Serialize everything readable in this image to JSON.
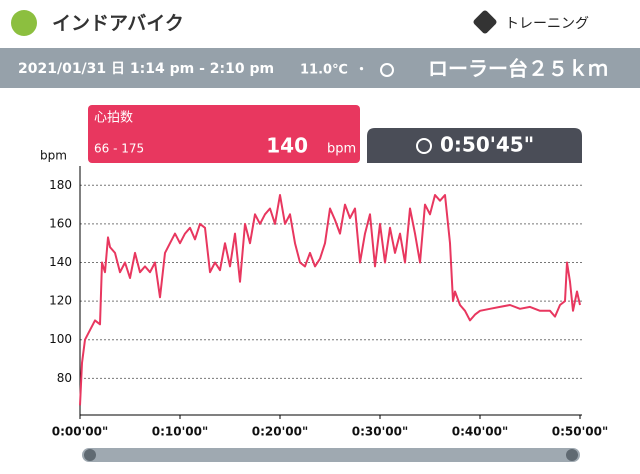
{
  "header": {
    "title": "インドアバイク",
    "tag": "トレーニング"
  },
  "info": {
    "date": "2021/01/31 日 1:14 pm - 2:10 pm",
    "temperature": "11.0℃",
    "separator": "・",
    "route": "ローラー台２５ｋｍ"
  },
  "card": {
    "label": "心拍数",
    "range": "66 - 175",
    "value": 140,
    "unit": "bpm"
  },
  "timer": "0:50'45\"",
  "chart_data": {
    "type": "line",
    "y_label": "bpm",
    "color": "#e8375f",
    "x": [
      0,
      0.2,
      0.5,
      1,
      1.5,
      2,
      2.2,
      2.5,
      2.8,
      3,
      3.5,
      4,
      4.5,
      5,
      5.5,
      6,
      6.5,
      7,
      7.5,
      8,
      8.5,
      9,
      9.5,
      10,
      10.5,
      11,
      11.5,
      12,
      12.5,
      13,
      13.5,
      14,
      14.5,
      15,
      15.5,
      16,
      16.5,
      17,
      17.5,
      18,
      18.5,
      19,
      19.5,
      20,
      20.5,
      21,
      21.5,
      22,
      22.5,
      23,
      23.5,
      24,
      24.5,
      25,
      25.5,
      26,
      26.5,
      27,
      27.5,
      28,
      28.5,
      29,
      29.5,
      30,
      30.5,
      31,
      31.5,
      32,
      32.5,
      33,
      33.5,
      34,
      34.5,
      35,
      35.5,
      36,
      36.5,
      37,
      37.3,
      37.5,
      38,
      38.5,
      39,
      39.5,
      40,
      41,
      42,
      43,
      44,
      45,
      46,
      47,
      47.5,
      48,
      48.5,
      48.7,
      49,
      49.3,
      49.5,
      49.7,
      50
    ],
    "values": [
      66,
      88,
      100,
      105,
      110,
      108,
      140,
      135,
      153,
      148,
      145,
      135,
      140,
      132,
      145,
      135,
      138,
      135,
      140,
      122,
      145,
      150,
      155,
      150,
      155,
      158,
      152,
      160,
      158,
      135,
      140,
      136,
      150,
      138,
      155,
      130,
      160,
      150,
      165,
      160,
      165,
      168,
      160,
      175,
      160,
      165,
      150,
      140,
      138,
      145,
      138,
      142,
      150,
      168,
      162,
      155,
      170,
      163,
      168,
      140,
      155,
      165,
      138,
      160,
      140,
      158,
      145,
      155,
      140,
      168,
      155,
      140,
      170,
      165,
      175,
      172,
      175,
      150,
      120,
      125,
      118,
      115,
      110,
      113,
      115,
      116,
      117,
      118,
      116,
      117,
      115,
      115,
      112,
      118,
      120,
      140,
      130,
      115,
      120,
      125,
      118
    ],
    "xlim": [
      0,
      50.2
    ],
    "ylim": [
      61,
      190
    ],
    "yticks": [
      80,
      100,
      120,
      140,
      160,
      180
    ],
    "xticks": [
      {
        "value": 0,
        "label": "0:00'00\""
      },
      {
        "value": 10,
        "label": "0:10'00\""
      },
      {
        "value": 20,
        "label": "0:20'00\""
      },
      {
        "value": 30,
        "label": "0:30'00\""
      },
      {
        "value": 40,
        "label": "0:40'00\""
      },
      {
        "value": 50,
        "label": "0:50'00\""
      }
    ],
    "grid": true
  }
}
